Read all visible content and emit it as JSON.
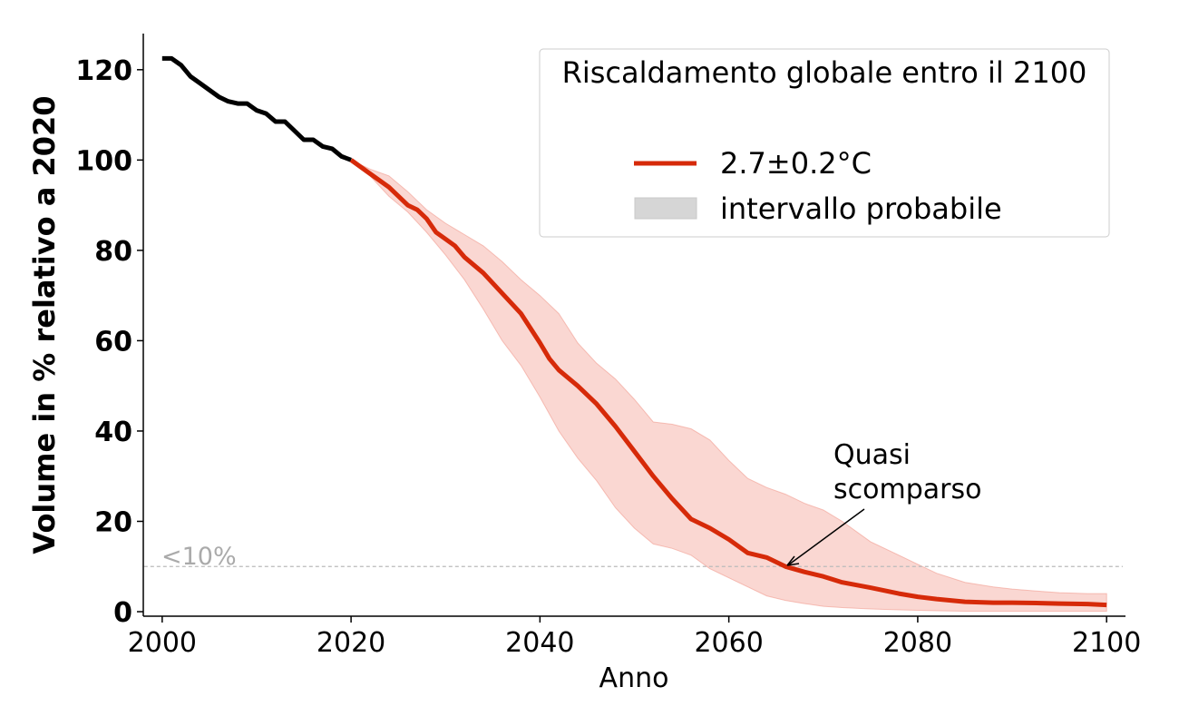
{
  "chart_data": {
    "type": "line",
    "xlabel": "Anno",
    "ylabel": "Volume in % relativo a 2020",
    "xlim": [
      1998,
      2102
    ],
    "ylim": [
      -1,
      128
    ],
    "x_ticks": [
      2000,
      2020,
      2040,
      2060,
      2080,
      2100
    ],
    "y_ticks": [
      0,
      20,
      40,
      60,
      80,
      100,
      120
    ],
    "legend": {
      "title": "Riscaldamento globale entro il 2100",
      "location": "top-right",
      "entries": [
        {
          "label": "2.7±0.2°C",
          "kind": "line"
        },
        {
          "label": "intervallo probabile",
          "kind": "band"
        }
      ]
    },
    "threshold": {
      "y": 10,
      "label": "<10%"
    },
    "annotation": {
      "lines": [
        "Quasi",
        "scomparso"
      ],
      "x": 2066,
      "y": 10
    },
    "series": [
      {
        "name": "osservato",
        "color": "#000000",
        "x": [
          2000,
          2001,
          2002,
          2003,
          2004,
          2005,
          2006,
          2007,
          2008,
          2009,
          2010,
          2011,
          2012,
          2013,
          2014,
          2015,
          2016,
          2017,
          2018,
          2019,
          2020
        ],
        "y": [
          122.5,
          122.5,
          121,
          118.5,
          117,
          115.5,
          114,
          113,
          112.5,
          112.5,
          111,
          110.3,
          108.5,
          108.5,
          106.5,
          104.5,
          104.5,
          103,
          102.5,
          100.8,
          100
        ]
      },
      {
        "name": "2.7±0.2°C",
        "color": "#d62a09",
        "x": [
          2020,
          2022,
          2024,
          2026,
          2027,
          2028,
          2029,
          2030,
          2031,
          2032,
          2034,
          2036,
          2038,
          2040,
          2041,
          2042,
          2044,
          2046,
          2048,
          2050,
          2052,
          2054,
          2056,
          2058,
          2060,
          2062,
          2063,
          2064,
          2065,
          2066,
          2068,
          2070,
          2072,
          2075,
          2078,
          2080,
          2082,
          2085,
          2088,
          2090,
          2093,
          2095,
          2098,
          2100
        ],
        "y": [
          100,
          97,
          94,
          90,
          89,
          87,
          84,
          82.5,
          81,
          78.5,
          75,
          70.5,
          66,
          59.5,
          56,
          53.5,
          50,
          46,
          41,
          35.5,
          30,
          25,
          20.5,
          18.5,
          16,
          13,
          12.5,
          12,
          11,
          10,
          8.8,
          7.8,
          6.5,
          5.3,
          4,
          3.3,
          2.8,
          2.2,
          2,
          2,
          1.9,
          1.8,
          1.7,
          1.5
        ]
      }
    ],
    "band": {
      "name": "intervallo probabile",
      "color": "#f08b7d",
      "x": [
        2020,
        2022,
        2024,
        2026,
        2028,
        2030,
        2032,
        2034,
        2036,
        2038,
        2040,
        2042,
        2044,
        2046,
        2048,
        2050,
        2052,
        2054,
        2056,
        2058,
        2060,
        2062,
        2064,
        2066,
        2068,
        2070,
        2072,
        2075,
        2078,
        2080,
        2082,
        2085,
        2088,
        2090,
        2093,
        2095,
        2098,
        2100
      ],
      "upper": [
        100,
        98,
        96.5,
        93,
        89,
        86,
        83.5,
        81,
        77.5,
        73.5,
        70,
        66,
        59.5,
        55,
        51.5,
        47,
        42,
        41.5,
        40.5,
        38,
        33.5,
        29.5,
        27.5,
        26,
        24,
        22.5,
        20,
        15.5,
        12.5,
        10.5,
        8.5,
        6.5,
        5.5,
        5,
        4.5,
        4.2,
        4,
        4
      ],
      "lower": [
        100,
        96.5,
        92,
        88.5,
        84,
        79,
        73.5,
        67,
        60,
        54.5,
        47.5,
        40,
        34,
        29,
        23,
        18.5,
        15,
        14,
        12.5,
        9.5,
        7.5,
        5.5,
        3.5,
        2.5,
        1.8,
        1.2,
        0.9,
        0.6,
        0.4,
        0.3,
        0.2,
        0.1,
        0.1,
        0.1,
        0.1,
        0.1,
        0.1,
        0.1
      ]
    }
  }
}
